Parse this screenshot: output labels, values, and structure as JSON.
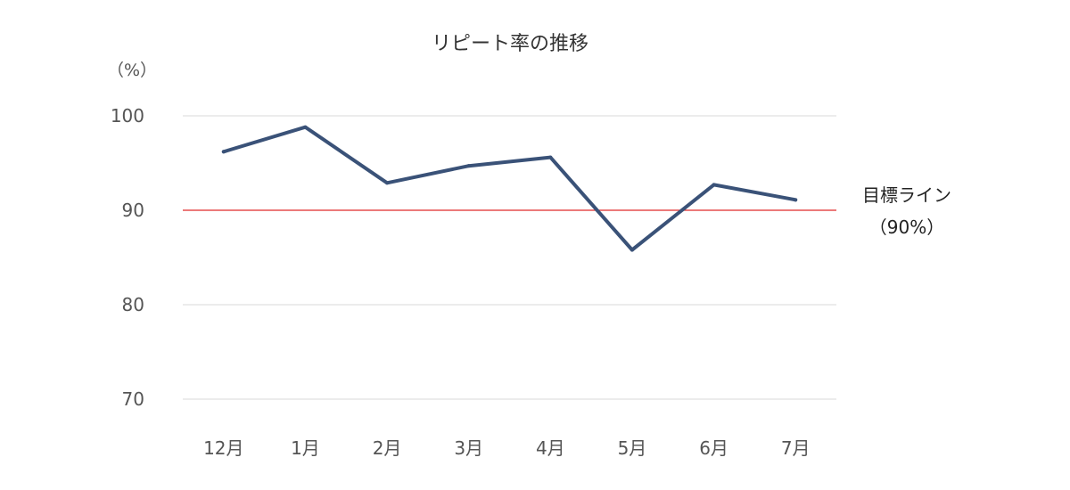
{
  "chart_data": {
    "type": "line",
    "title": "リピート率の推移",
    "ylabel": "（%）",
    "xlabel": "",
    "categories": [
      "12月",
      "1月",
      "2月",
      "3月",
      "4月",
      "5月",
      "6月",
      "7月"
    ],
    "series": [
      {
        "values": [
          96.2,
          98.8,
          92.9,
          94.7,
          95.6,
          85.8,
          92.7,
          91.1
        ],
        "color": "#3a5278"
      }
    ],
    "ylim": [
      70,
      100
    ],
    "yticks": [
      100,
      90,
      80,
      70
    ],
    "grid": true,
    "reference_line": {
      "value": 90,
      "label_line1": "目標ライン",
      "label_line2": "（90%）",
      "color": "#e02a2a"
    },
    "gridline_color": "#d9d9d9"
  }
}
